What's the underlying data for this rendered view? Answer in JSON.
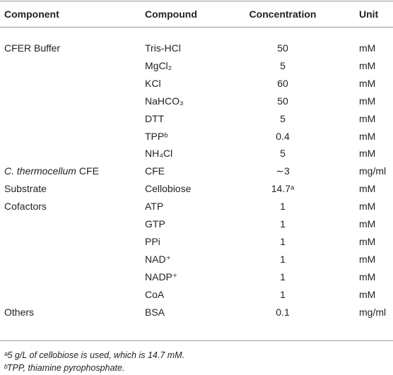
{
  "table": {
    "header": [
      "Component",
      "Compound",
      "Concentration",
      "Unit"
    ],
    "rows": [
      [
        "CFER Buffer",
        "Tris-HCl",
        50,
        "mM"
      ],
      [
        null,
        "MgCl₂",
        5,
        "mM"
      ],
      [
        null,
        "KCl",
        60,
        "mM"
      ],
      [
        null,
        "NaHCO₃",
        50,
        "mM"
      ],
      [
        null,
        "DTT",
        5,
        "mM"
      ],
      [
        null,
        "TPPᵇ",
        0.4,
        "mM"
      ],
      [
        null,
        "NH₄Cl",
        5,
        "mM"
      ],
      [
        {
          "italic": "C. thermocellum",
          "text": "CFE"
        },
        "CFE",
        "∼3",
        "mg/ml"
      ],
      [
        "Substrate",
        "Cellobiose",
        "14.7ᵃ",
        "mM"
      ],
      [
        "Cofactors",
        "ATP",
        1,
        "mM"
      ],
      [
        null,
        "GTP",
        1,
        "mM"
      ],
      [
        null,
        "PPi",
        1,
        "mM"
      ],
      [
        null,
        "NAD⁺",
        1,
        "mM"
      ],
      [
        null,
        "NADP⁺",
        1,
        "mM"
      ],
      [
        null,
        "CoA",
        1,
        "mM"
      ],
      [
        "Others",
        "BSA",
        0.1,
        "mg/ml"
      ]
    ],
    "footnotes": [
      "ᵃ5 g/L of cellobiose is used, which is 14.7 mM.",
      "ᵇTPP, thiamine pyrophosphate."
    ]
  }
}
